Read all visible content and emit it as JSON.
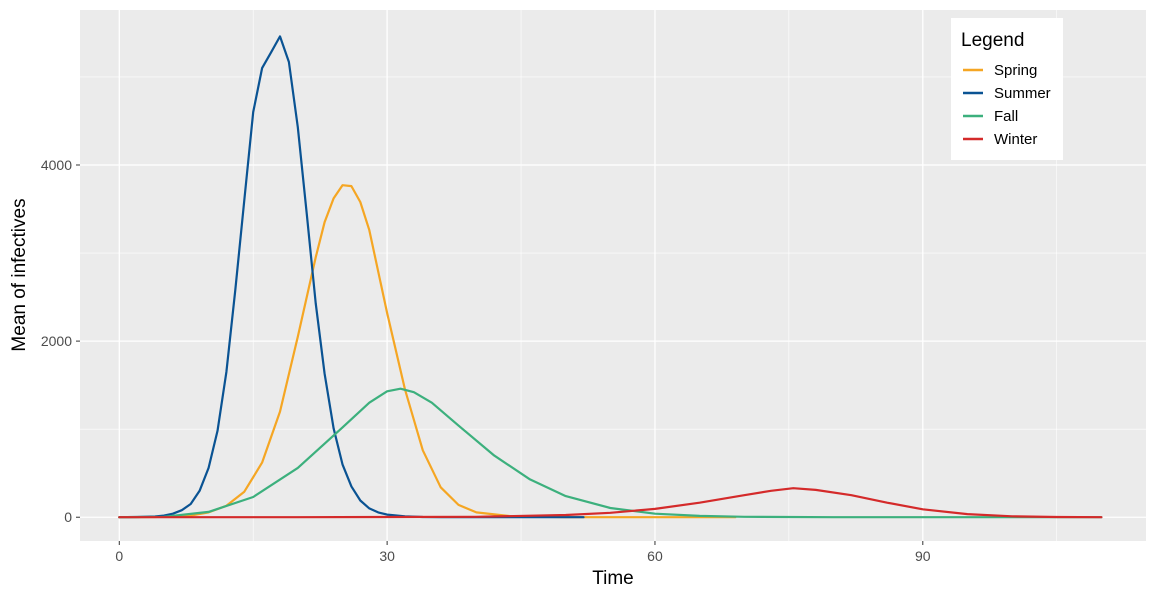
{
  "chart_data": {
    "type": "line",
    "title": "",
    "xlabel": "Time",
    "ylabel": "Mean of infectives",
    "xlim": [
      -4.4,
      115
    ],
    "ylim": [
      -270,
      5760
    ],
    "x_ticks": [
      0,
      30,
      60,
      90
    ],
    "y_ticks": [
      0,
      2000,
      4000
    ],
    "x_tick_labels": [
      "0",
      "30",
      "60",
      "90"
    ],
    "y_tick_labels": [
      "0",
      "2000",
      "4000"
    ],
    "grid": true,
    "legend": {
      "title": "Legend",
      "position": "top-right"
    },
    "series": [
      {
        "name": "Spring",
        "color": "#F5A623",
        "x": [
          0,
          4,
          8,
          10,
          12,
          14,
          16,
          18,
          20,
          22,
          23,
          24,
          25,
          26,
          27,
          28,
          30,
          32,
          34,
          36,
          38,
          40,
          44,
          50,
          60,
          69
        ],
        "y": [
          0,
          3,
          20,
          55,
          130,
          290,
          620,
          1200,
          2050,
          2950,
          3350,
          3620,
          3770,
          3760,
          3580,
          3260,
          2320,
          1450,
          760,
          340,
          140,
          55,
          10,
          0,
          0,
          0
        ]
      },
      {
        "name": "Summer",
        "color": "#0A5393",
        "x": [
          0,
          2,
          4,
          5,
          6,
          7,
          8,
          9,
          10,
          11,
          12,
          13,
          14,
          15,
          16,
          17,
          18,
          19,
          20,
          21,
          22,
          23,
          24,
          25,
          26,
          27,
          28,
          29,
          30,
          32,
          34,
          36,
          40,
          45,
          52
        ],
        "y": [
          0,
          2,
          8,
          18,
          40,
          80,
          150,
          300,
          560,
          980,
          1650,
          2580,
          3600,
          4600,
          5100,
          5280,
          5460,
          5170,
          4430,
          3440,
          2430,
          1630,
          1010,
          600,
          350,
          190,
          100,
          55,
          30,
          10,
          3,
          0,
          0,
          0,
          0
        ]
      },
      {
        "name": "Fall",
        "color": "#3CB07D",
        "x": [
          0,
          5,
          10,
          15,
          20,
          25,
          28,
          30,
          31.5,
          33,
          35,
          38,
          42,
          46,
          50,
          55,
          60,
          65,
          70,
          80,
          90,
          100,
          110
        ],
        "y": [
          0,
          5,
          60,
          230,
          560,
          1020,
          1300,
          1430,
          1460,
          1420,
          1300,
          1040,
          700,
          430,
          240,
          105,
          40,
          15,
          5,
          0,
          0,
          0,
          0
        ]
      },
      {
        "name": "Winter",
        "color": "#D42A2A",
        "x": [
          0,
          20,
          40,
          50,
          55,
          60,
          65,
          70,
          73,
          75.5,
          78,
          82,
          86,
          90,
          95,
          100,
          105,
          110
        ],
        "y": [
          0,
          0,
          5,
          25,
          50,
          95,
          165,
          250,
          300,
          330,
          310,
          250,
          165,
          90,
          35,
          10,
          3,
          0
        ]
      }
    ]
  }
}
